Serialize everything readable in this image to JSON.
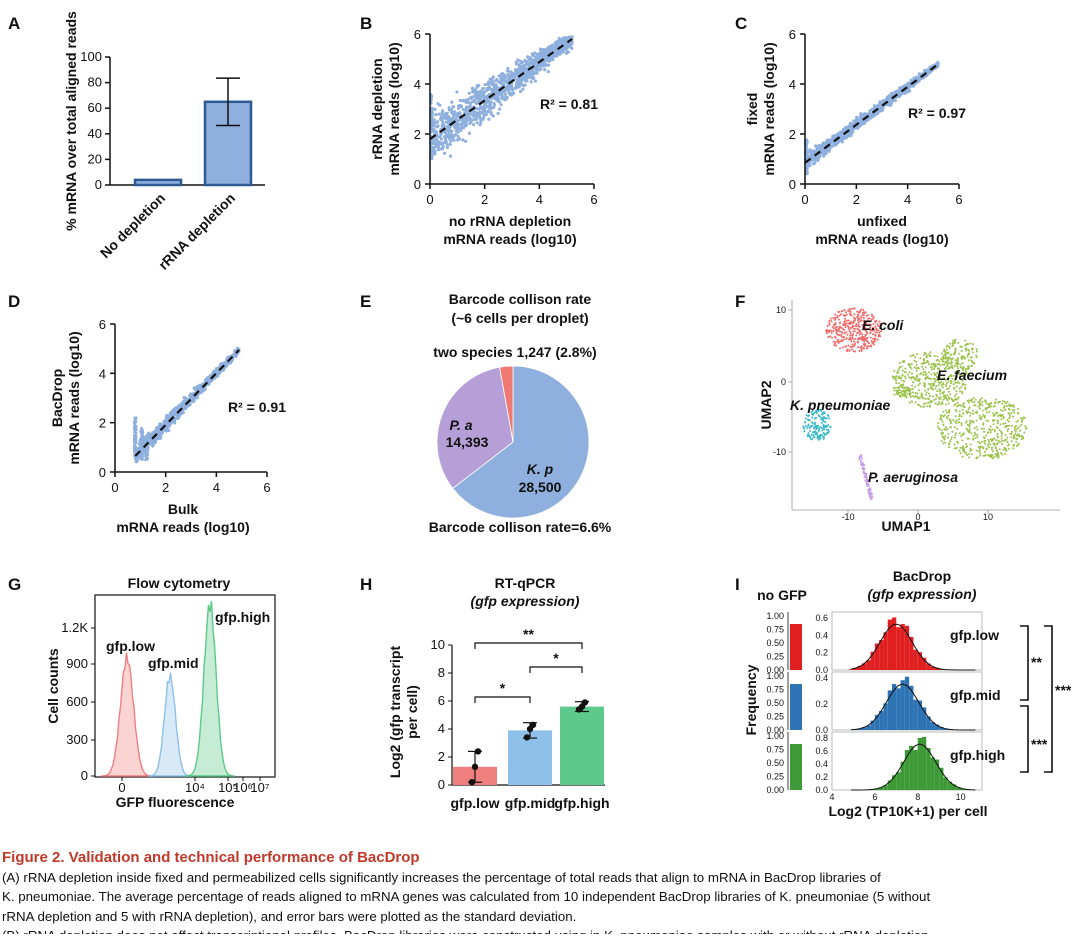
{
  "panels": {
    "A": "A",
    "B": "B",
    "C": "C",
    "D": "D",
    "E": "E",
    "F": "F",
    "G": "G",
    "H": "H",
    "I": "I"
  },
  "colors": {
    "bar_blue": "#8fb0de",
    "bar_edge": "#2e5a94",
    "scatter": "#8fb0de",
    "pie_kp": "#8fb0de",
    "pie_pa": "#b59fd6",
    "pie_two": "#f07a73",
    "ecoli": "#f26b6b",
    "efaecium": "#9bc24a",
    "kpneu": "#3bb8c8",
    "paer": "#c79be8",
    "low": "#f08080",
    "mid": "#8ec0ea",
    "high": "#5dc98a",
    "i_low": "#e02020",
    "i_mid": "#2e74b5",
    "i_high": "#3d9a36",
    "caption_title": "#c0392b"
  },
  "chart_data": [
    {
      "id": "A",
      "type": "bar",
      "categories": [
        "No depletion",
        "rRNA depletion"
      ],
      "values": [
        4,
        65
      ],
      "error": [
        0,
        18.5
      ],
      "ylabel": "% mRNA over total aligned reads",
      "ylim": [
        0,
        100
      ],
      "yticks": [
        "0",
        "20",
        "40",
        "60",
        "80",
        "100"
      ]
    },
    {
      "id": "B",
      "type": "scatter",
      "xlabel": [
        "no rRNA depletion",
        "mRNA reads (log10)"
      ],
      "ylabel": [
        "rRNA depletion",
        "mRNA reads (log10)"
      ],
      "xlim": [
        0,
        6
      ],
      "ylim": [
        0,
        6
      ],
      "xticks": [
        "0",
        "2",
        "4",
        "6"
      ],
      "yticks": [
        "0",
        "2",
        "4",
        "6"
      ],
      "fit": [
        [
          0,
          1.8
        ],
        [
          5.2,
          5.8
        ]
      ],
      "annotation": "R² = 0.81"
    },
    {
      "id": "C",
      "type": "scatter",
      "xlabel": [
        "unfixed",
        "mRNA reads (log10)"
      ],
      "ylabel": [
        "fixed",
        "mRNA reads (log10)"
      ],
      "xlim": [
        0,
        6
      ],
      "ylim": [
        0,
        6
      ],
      "xticks": [
        "0",
        "2",
        "4",
        "6"
      ],
      "yticks": [
        "0",
        "2",
        "4",
        "6"
      ],
      "fit": [
        [
          0,
          0.85
        ],
        [
          5.2,
          4.8
        ]
      ],
      "annotation": "R² = 0.97"
    },
    {
      "id": "D",
      "type": "scatter",
      "xlabel": [
        "Bulk",
        "mRNA reads (log10)"
      ],
      "ylabel": [
        "BacDrop",
        "mRNA reads (log10)"
      ],
      "xlim": [
        0,
        6
      ],
      "ylim": [
        0,
        6
      ],
      "xticks": [
        "0",
        "2",
        "4",
        "6"
      ],
      "yticks": [
        "0",
        "2",
        "4",
        "6"
      ],
      "fit": [
        [
          0.8,
          0.65
        ],
        [
          4.9,
          4.95
        ]
      ],
      "annotation": "R² = 0.91"
    },
    {
      "id": "E",
      "type": "pie",
      "title": [
        "Barcode collison rate",
        "(~6 cells per droplet)"
      ],
      "slices": [
        {
          "label": "K. p",
          "value": 28500,
          "text": "28,500"
        },
        {
          "label": "P. a",
          "value": 14393,
          "text": "14,393"
        },
        {
          "label": "two species",
          "value": 1247,
          "text": "1,247 (2.8%)"
        }
      ],
      "top_label": "two species 1,247 (2.8%)",
      "bottom_label": "Barcode collison rate=6.6%"
    },
    {
      "id": "F",
      "type": "scatter",
      "xlabel": "UMAP1",
      "ylabel": "UMAP2",
      "xticks": [
        "-10",
        "0",
        "10"
      ],
      "yticks": [
        "10",
        "0",
        "-10"
      ],
      "clusters": [
        "E. coli",
        "E. faecium",
        "K. pneumoniae",
        "P. aeruginosa"
      ]
    },
    {
      "id": "G",
      "type": "area",
      "title": "Flow cytometry",
      "xlabel": "GFP fluorescence",
      "ylabel": "Cell counts",
      "yticks": [
        "0",
        "300",
        "600",
        "900",
        "1.2K"
      ],
      "xticks": [
        "0",
        "10⁴",
        "10⁵",
        "10⁶",
        "10⁷"
      ],
      "series": [
        {
          "name": "gfp.low"
        },
        {
          "name": "gfp.mid"
        },
        {
          "name": "gfp.high"
        }
      ]
    },
    {
      "id": "H",
      "type": "bar",
      "title": [
        "RT-qPCR",
        "(gfp expression)"
      ],
      "categories": [
        "gfp.low",
        "gfp.mid",
        "gfp.high"
      ],
      "values": [
        1.3,
        3.9,
        5.6
      ],
      "error": [
        1.1,
        0.55,
        0.35
      ],
      "points": [
        [
          0.2,
          1.3,
          2.4
        ],
        [
          3.4,
          4.0,
          4.3
        ],
        [
          5.4,
          5.6,
          5.9
        ]
      ],
      "ylabel": "Log2 (gfp transcript per cell)",
      "ylim": [
        0,
        10
      ],
      "yticks": [
        "0",
        "2",
        "4",
        "6",
        "8",
        "10"
      ],
      "sig": [
        {
          "from": 0,
          "to": 2,
          "text": "**"
        },
        {
          "from": 1,
          "to": 2,
          "text": "*"
        },
        {
          "from": 0,
          "to": 1,
          "text": "*"
        }
      ]
    },
    {
      "id": "I",
      "type": "bar",
      "title": [
        "BacDrop",
        "(gfp expression)"
      ],
      "left_title": "no GFP",
      "xlabel": "Log2 (TP10K+1) per cell",
      "ylabel": "Frequency",
      "xticks": [
        "4",
        "6",
        "8",
        "10"
      ],
      "left_yticks": [
        "0.00",
        "0.25",
        "0.50",
        "0.75",
        "1.00"
      ],
      "series": [
        {
          "name": "gfp.low",
          "yticks": [
            "0.0",
            "0.2",
            "0.4",
            "0.6"
          ]
        },
        {
          "name": "gfp.mid",
          "yticks": [
            "0.0",
            "0.2",
            "0.4"
          ]
        },
        {
          "name": "gfp.high",
          "yticks": [
            "0.0",
            "0.2",
            "0.4",
            "0.6",
            "0.8"
          ]
        }
      ],
      "sig": [
        "**",
        "***",
        "***"
      ]
    }
  ],
  "caption": {
    "title": "Figure 2.  Validation and technical performance of BacDrop",
    "lines": [
      "(A) rRNA depletion inside fixed and permeabilized cells significantly increases the percentage of total reads that align to mRNA in BacDrop libraries of",
      "K. pneumoniae. The average percentage of reads aligned to mRNA genes was calculated from 10 independent BacDrop libraries of K. pneumoniae (5 without",
      "rRNA depletion and 5 with rRNA depletion), and error bars were plotted as the standard deviation.",
      "(B) rRNA depletion does not affect transcriptional profiles. BacDrop libraries were constructed using in K. pneumoniae samples with or without rRNA depletion"
    ]
  }
}
